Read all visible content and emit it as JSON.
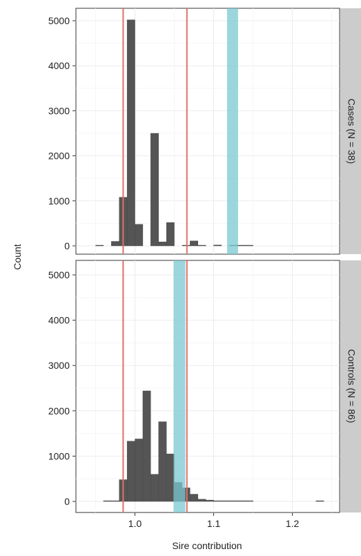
{
  "chart_data": {
    "type": "bar",
    "subtype": "faceted histogram",
    "xlabel": "Sire contribution",
    "ylabel": "Count",
    "x_ticks": [
      1.0,
      1.1,
      1.2
    ],
    "x_tick_labels": [
      "1.0",
      "1.1",
      "1.2"
    ],
    "y_ticks": [
      0,
      1000,
      2000,
      3000,
      4000,
      5000
    ],
    "y_tick_labels": [
      "0",
      "1000",
      "2000",
      "3000",
      "4000",
      "5000"
    ],
    "xlim": [
      0.925,
      1.26
    ],
    "ylim": [
      -200,
      5260
    ],
    "bin_width": 0.01,
    "grid": true,
    "colors": {
      "bars": "#555555",
      "vertical_lines": "#e0716a",
      "highlight_band": "#79c8d2",
      "panel_background": "#ffffff",
      "strip_background": "#cccccc",
      "grid": "#ebebeb"
    },
    "reference_lines_x": [
      0.985,
      1.066
    ],
    "panels": [
      {
        "strip_label": "Cases (N = 38)",
        "highlight_band": [
          1.117,
          1.131
        ],
        "bins": [
          {
            "x": 0.955,
            "count": 5
          },
          {
            "x": 0.975,
            "count": 100
          },
          {
            "x": 0.985,
            "count": 1080
          },
          {
            "x": 0.995,
            "count": 5020
          },
          {
            "x": 1.005,
            "count": 480
          },
          {
            "x": 1.025,
            "count": 2500
          },
          {
            "x": 1.035,
            "count": 90
          },
          {
            "x": 1.045,
            "count": 520
          },
          {
            "x": 1.065,
            "count": 15
          },
          {
            "x": 1.075,
            "count": 110
          },
          {
            "x": 1.085,
            "count": 10
          },
          {
            "x": 1.105,
            "count": 20
          },
          {
            "x": 1.125,
            "count": 8
          },
          {
            "x": 1.135,
            "count": 3
          },
          {
            "x": 1.145,
            "count": 3
          }
        ]
      },
      {
        "strip_label": "Controls (N = 86)",
        "highlight_band": [
          1.049,
          1.064
        ],
        "bins": [
          {
            "x": 0.965,
            "count": 5
          },
          {
            "x": 0.975,
            "count": 10
          },
          {
            "x": 0.985,
            "count": 480
          },
          {
            "x": 0.995,
            "count": 1330
          },
          {
            "x": 1.005,
            "count": 1380
          },
          {
            "x": 1.015,
            "count": 2440
          },
          {
            "x": 1.025,
            "count": 600
          },
          {
            "x": 1.035,
            "count": 1760
          },
          {
            "x": 1.045,
            "count": 1050
          },
          {
            "x": 1.055,
            "count": 420
          },
          {
            "x": 1.065,
            "count": 300
          },
          {
            "x": 1.075,
            "count": 160
          },
          {
            "x": 1.085,
            "count": 50
          },
          {
            "x": 1.095,
            "count": 30
          },
          {
            "x": 1.105,
            "count": 15
          },
          {
            "x": 1.115,
            "count": 8
          },
          {
            "x": 1.125,
            "count": 5
          },
          {
            "x": 1.135,
            "count": 4
          },
          {
            "x": 1.145,
            "count": 3
          },
          {
            "x": 1.235,
            "count": 6
          }
        ]
      }
    ]
  }
}
